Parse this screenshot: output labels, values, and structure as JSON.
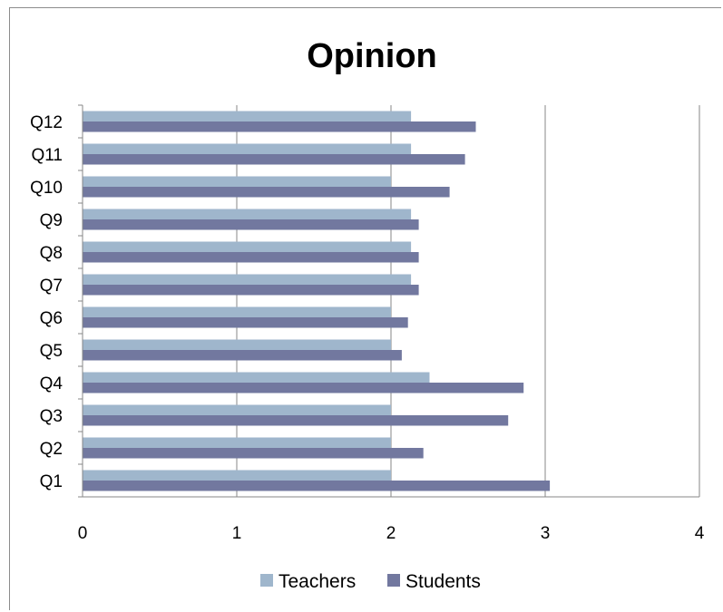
{
  "chart_data": {
    "type": "bar",
    "orientation": "horizontal",
    "title": "Opinion",
    "xlabel": "",
    "ylabel": "",
    "categories": [
      "Q1",
      "Q2",
      "Q3",
      "Q4",
      "Q5",
      "Q6",
      "Q7",
      "Q8",
      "Q9",
      "Q10",
      "Q11",
      "Q12"
    ],
    "series": [
      {
        "name": "Teachers",
        "color": "#9fb6cc",
        "values": [
          2.0,
          2.0,
          2.0,
          2.25,
          2.0,
          2.0,
          2.13,
          2.13,
          2.13,
          2.0,
          2.13,
          2.13
        ]
      },
      {
        "name": "Students",
        "color": "#72789f",
        "values": [
          3.03,
          2.21,
          2.76,
          2.86,
          2.07,
          2.11,
          2.18,
          2.18,
          2.18,
          2.38,
          2.48,
          2.55
        ]
      }
    ],
    "xlim": [
      0,
      4
    ],
    "x_ticks": [
      "0",
      "1",
      "2",
      "3",
      "4"
    ],
    "grid": "vertical major gridlines",
    "legend": "bottom"
  }
}
